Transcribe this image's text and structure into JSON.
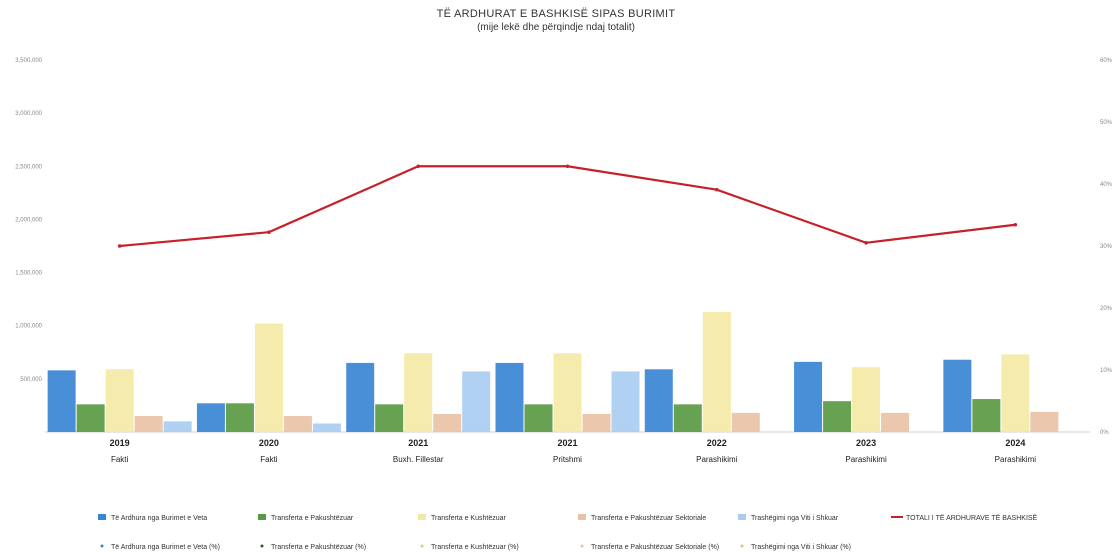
{
  "chart_data": {
    "type": "bar",
    "title": "TË ARDHURAT E BASHKISË SIPAS BURIMIT",
    "subtitle": "(mije lekë dhe përqindje ndaj totalit)",
    "years": [
      "2019",
      "2020",
      "2021",
      "2021",
      "2022",
      "2023",
      "2024"
    ],
    "stages": [
      "Fakti",
      "Fakti",
      "Buxh. Fillestar",
      "Pritshmi",
      "Parashikimi",
      "Parashikimi",
      "Parashikimi"
    ],
    "left_ticks": [
      "500,000",
      "1,000,000",
      "1,500,000",
      "2,000,000",
      "2,500,000",
      "3,000,000",
      "3,500,000"
    ],
    "right_ticks": [
      "0%",
      "10%",
      "20%",
      "30%",
      "40%",
      "50%",
      "60%"
    ],
    "ylim": [
      0,
      3500000
    ],
    "y2lim": [
      0,
      60
    ],
    "series": [
      {
        "name": "Të Ardhura nga Burimet e Veta",
        "color": "#3a86d4",
        "values": [
          580000,
          270000,
          650000,
          650000,
          590000,
          660000,
          680000
        ]
      },
      {
        "name": "Transferta e Pakushtëzuar",
        "color": "#5a9a44",
        "values": [
          260000,
          270000,
          260000,
          260000,
          260000,
          290000,
          310000
        ]
      },
      {
        "name": "Transferta e Kushtëzuar",
        "color": "#f3e9a6",
        "values": [
          590000,
          1020000,
          740000,
          740000,
          1130000,
          610000,
          730000
        ]
      },
      {
        "name": "Transferta e Pakushtëzuar Sektoriale",
        "color": "#e9c2a6",
        "values": [
          150000,
          150000,
          170000,
          170000,
          180000,
          180000,
          190000
        ]
      },
      {
        "name": "Trashëgimi nga Viti i Shkuar",
        "color": "#a9cdf0",
        "values": [
          100000,
          80000,
          570000,
          570000,
          0,
          0,
          0
        ]
      }
    ],
    "total": {
      "name": "TOTALI I TË ARDHURAVE TË BASHKISË",
      "color": "#c8202a",
      "values": [
        1750000,
        1880000,
        2500000,
        2500000,
        2280000,
        1780000,
        1950000
      ]
    },
    "percent_legend": [
      {
        "name": "Të Ardhura nga Burimet e Veta (%)",
        "color": "#3a86d4"
      },
      {
        "name": "Transferta e Pakushtëzuar (%)",
        "color": "#2b5a22"
      },
      {
        "name": "Transferta e Kushtëzuar (%)",
        "color": "#d9cf7c"
      },
      {
        "name": "Transferta e Pakushtëzuar Sektoriale (%)",
        "color": "#e9c2a6"
      },
      {
        "name": "Trashëgimi nga Viti i Shkuar (%)",
        "color": "#e0c27e"
      }
    ],
    "legend_position": "bottom"
  }
}
